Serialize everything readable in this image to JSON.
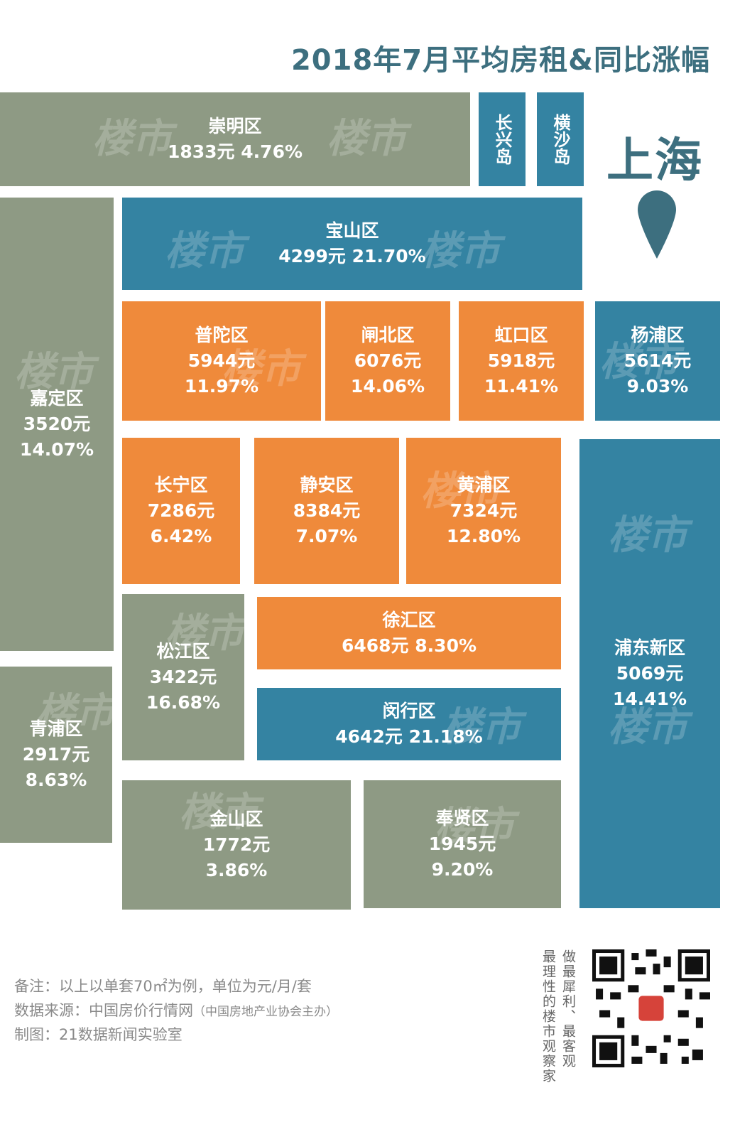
{
  "title": "2018年7月平均房租&同比涨幅",
  "city": "上海",
  "watermark": "楼市",
  "colors": {
    "green": "#8e9a84",
    "blue": "#3483a2",
    "orange": "#ef8a3b",
    "title": "#3d6f7f"
  },
  "districts": {
    "chongming": {
      "name": "崇明区",
      "rent": "1833元",
      "growth": "4.76%"
    },
    "changxing": {
      "name": "长兴岛"
    },
    "hengsha": {
      "name": "横沙岛"
    },
    "baoshan": {
      "name": "宝山区",
      "rent": "4299元",
      "growth": "21.70%"
    },
    "jiading": {
      "name": "嘉定区",
      "rent": "3520元",
      "growth": "14.07%"
    },
    "putuo": {
      "name": "普陀区",
      "rent": "5944元",
      "growth": "11.97%"
    },
    "zhabei": {
      "name": "闸北区",
      "rent": "6076元",
      "growth": "14.06%"
    },
    "hongkou": {
      "name": "虹口区",
      "rent": "5918元",
      "growth": "11.41%"
    },
    "yangpu": {
      "name": "杨浦区",
      "rent": "5614元",
      "growth": "9.03%"
    },
    "changning": {
      "name": "长宁区",
      "rent": "7286元",
      "growth": "6.42%"
    },
    "jingan": {
      "name": "静安区",
      "rent": "8384元",
      "growth": "7.07%"
    },
    "huangpu": {
      "name": "黄浦区",
      "rent": "7324元",
      "growth": "12.80%"
    },
    "pudong": {
      "name": "浦东新区",
      "rent": "5069元",
      "growth": "14.41%"
    },
    "songjiang": {
      "name": "松江区",
      "rent": "3422元",
      "growth": "16.68%"
    },
    "xuhui": {
      "name": "徐汇区",
      "rent": "6468元",
      "growth": "8.30%"
    },
    "minhang": {
      "name": "闵行区",
      "rent": "4642元",
      "growth": "21.18%"
    },
    "qingpu": {
      "name": "青浦区",
      "rent": "2917元",
      "growth": "8.63%"
    },
    "jinshan": {
      "name": "金山区",
      "rent": "1772元",
      "growth": "3.86%"
    },
    "fengxian": {
      "name": "奉贤区",
      "rent": "1945元",
      "growth": "9.20%"
    }
  },
  "notes": {
    "remark": "备注：以上以单套70㎡为例，单位为元/月/套",
    "source": "数据来源：中国房价行情网",
    "source_org": "（中国房地产业协会主办）",
    "credit": "制图：21数据新闻实验室"
  },
  "slogan": {
    "line1": "做最犀利、最客观",
    "line2": "最理性的楼市观察家"
  }
}
